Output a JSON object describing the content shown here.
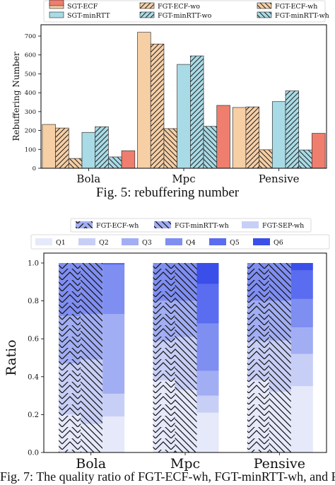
{
  "chart_data": [
    {
      "type": "bar",
      "ylabel": "Rebuffering Number",
      "ylim": [
        0,
        760
      ],
      "yticks": [
        0,
        100,
        200,
        300,
        400,
        500,
        600,
        700
      ],
      "categories": [
        "Bola",
        "Mpc",
        "Pensive"
      ],
      "legend_position": "top",
      "series": [
        {
          "name": "SGT-ECF",
          "values": [
            232,
            720,
            322
          ],
          "color": "#f7cfa5",
          "hatch": "none"
        },
        {
          "name": "FGT-ECF-wo",
          "values": [
            213,
            658,
            325
          ],
          "color": "#f7cfa5",
          "hatch": "diag"
        },
        {
          "name": "FGT-ECF-wh",
          "values": [
            52,
            210,
            98
          ],
          "color": "#f7cfa5",
          "hatch": "back"
        },
        {
          "name": "SGT-minRTT",
          "values": [
            190,
            550,
            353
          ],
          "color": "#a9dbe6",
          "hatch": "none"
        },
        {
          "name": "FGT-minRTT-wo",
          "values": [
            220,
            595,
            410
          ],
          "color": "#a9dbe6",
          "hatch": "diag"
        },
        {
          "name": "FGT-minRTT-wh",
          "values": [
            60,
            222,
            97
          ],
          "color": "#a9dbe6",
          "hatch": "back"
        },
        {
          "name": "FGT-SEP-wh",
          "values": [
            93,
            333,
            185
          ],
          "color": "#ef7e6e",
          "hatch": "none"
        }
      ],
      "caption": "Fig. 5: rebuffering number"
    },
    {
      "type": "bar",
      "stacked": true,
      "ylabel": "Ratio",
      "ylim": [
        0,
        1.0
      ],
      "yticks": [
        0.0,
        0.2,
        0.4,
        0.6,
        0.8,
        1.0
      ],
      "categories": [
        "Bola",
        "Mpc",
        "Pensive"
      ],
      "legend_position": "top",
      "groups": [
        "FGT-ECF-wh",
        "FGT-minRTT-wh",
        "FGT-SEP-wh"
      ],
      "levels": [
        "Q1",
        "Q2",
        "Q3",
        "Q4",
        "Q5",
        "Q6"
      ],
      "level_colors": [
        "#e6e9fa",
        "#c8cff6",
        "#a2aef3",
        "#7f8ef1",
        "#5a6cef",
        "#3a4ee9"
      ],
      "ratios": {
        "Bola": {
          "FGT-ECF-wh": [
            0.2,
            0.27,
            0.25,
            0.28,
            0.0,
            0.0
          ],
          "FGT-minRTT-wh": [
            0.15,
            0.34,
            0.24,
            0.27,
            0.0,
            0.0
          ],
          "FGT-SEP-wh": [
            0.19,
            0.12,
            0.42,
            0.26,
            0.01,
            0.0
          ]
        },
        "Mpc": {
          "FGT-ECF-wh": [
            0.38,
            0.21,
            0.21,
            0.2,
            0.0,
            0.0
          ],
          "FGT-minRTT-wh": [
            0.33,
            0.28,
            0.19,
            0.2,
            0.0,
            0.0
          ],
          "FGT-SEP-wh": [
            0.21,
            0.09,
            0.13,
            0.25,
            0.21,
            0.11
          ]
        },
        "Pensive": {
          "FGT-ECF-wh": [
            0.38,
            0.21,
            0.21,
            0.2,
            0.0,
            0.0
          ],
          "FGT-minRTT-wh": [
            0.32,
            0.27,
            0.21,
            0.2,
            0.0,
            0.0
          ],
          "FGT-SEP-wh": [
            0.35,
            0.17,
            0.14,
            0.15,
            0.15,
            0.04
          ]
        }
      },
      "caption": "Fig. 7: The quality ratio of FGT-ECF-wh, FGT-minRTT-wh, and FGT-SEP-wh"
    }
  ]
}
